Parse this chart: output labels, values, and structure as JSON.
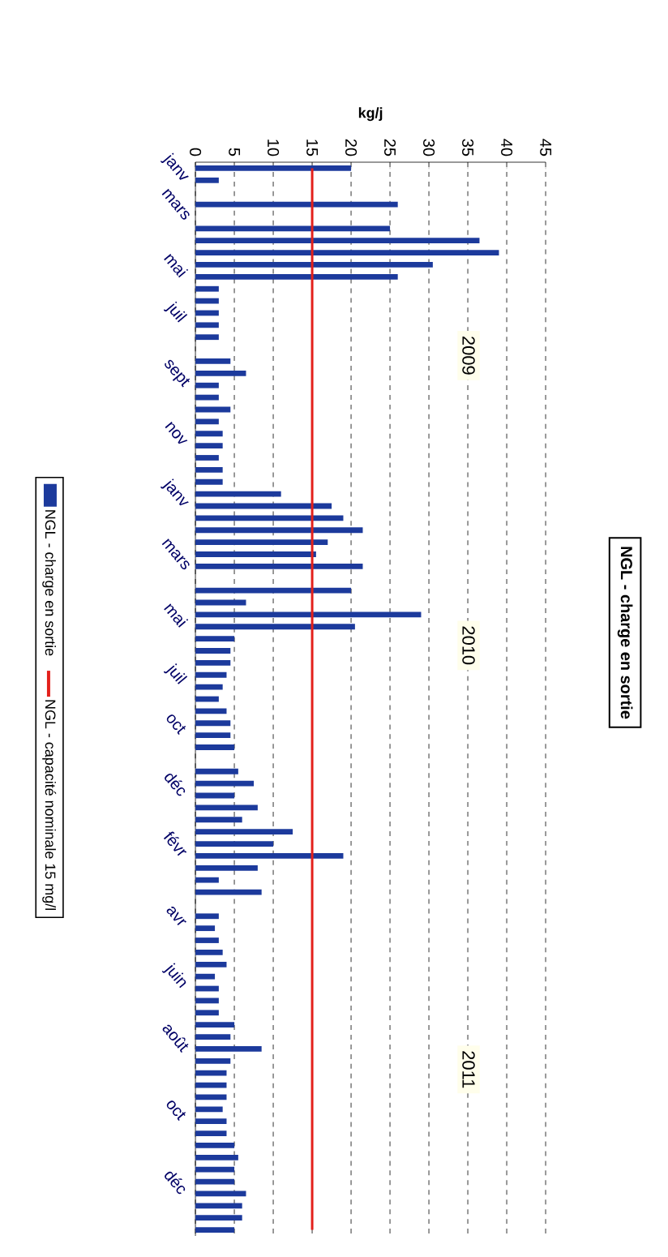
{
  "chart_data": {
    "type": "bar",
    "orientation": "horizontal",
    "title": "NGL - charge en sortie",
    "xlabel": "kg/j",
    "categories": [
      "janv",
      null,
      null,
      "mars",
      null,
      null,
      null,
      null,
      "mai",
      null,
      null,
      null,
      "juil",
      null,
      null,
      null,
      null,
      "sept",
      null,
      null,
      null,
      null,
      "nov",
      null,
      null,
      null,
      null,
      "janv",
      null,
      null,
      null,
      null,
      "mars",
      null,
      null,
      null,
      null,
      "mai",
      null,
      null,
      null,
      null,
      "juil",
      null,
      null,
      null,
      "oct",
      null,
      null,
      null,
      null,
      "déc",
      null,
      null,
      null,
      null,
      "févr",
      null,
      null,
      null,
      null,
      null,
      "avr",
      null,
      null,
      null,
      null,
      "juin",
      null,
      null,
      null,
      null,
      "août",
      null,
      null,
      null,
      null,
      null,
      "oct",
      null,
      null,
      null,
      null,
      null,
      "déc",
      null,
      null,
      null,
      null
    ],
    "series": [
      {
        "name": "NGL - charge en sortie",
        "color": "#1c3a9c",
        "values": [
          20,
          3,
          null,
          26,
          null,
          25,
          36.5,
          39,
          30.5,
          26,
          3,
          3,
          3,
          3,
          3,
          null,
          4.5,
          6.5,
          3,
          3,
          4.5,
          3,
          3.5,
          3.5,
          3,
          3.5,
          3.5,
          11,
          17.5,
          19,
          21.5,
          17,
          15.5,
          21.5,
          null,
          20,
          6.5,
          29,
          20.5,
          5,
          4.5,
          4.5,
          4,
          3.5,
          3,
          4,
          4.5,
          4.5,
          5,
          null,
          5.5,
          7.5,
          5,
          8,
          6,
          12.5,
          10,
          19,
          8,
          3,
          8.5,
          null,
          3,
          2.5,
          3,
          3.5,
          4,
          2.5,
          3,
          3,
          3,
          5,
          4.5,
          8.5,
          4.5,
          4,
          4,
          4,
          3.5,
          4,
          4,
          5,
          5.5,
          5,
          5,
          6.5,
          6,
          6,
          5
        ]
      },
      {
        "name": "NGL - capacité nominale 15 mg/l",
        "type": "line",
        "color": "#e3201b",
        "values": [
          15,
          15,
          15,
          15,
          15,
          15,
          15,
          15,
          15,
          15,
          15,
          15,
          15,
          15,
          15,
          15,
          15,
          15,
          15,
          15,
          15,
          15,
          15,
          15,
          15,
          15,
          15,
          15,
          15,
          15,
          15,
          15,
          15,
          15,
          15,
          15,
          15,
          15,
          15,
          15,
          15,
          15,
          15,
          15,
          15,
          15,
          15,
          15,
          15,
          15,
          15,
          15,
          15,
          15,
          15,
          15,
          15,
          15,
          15,
          15,
          15,
          15,
          15,
          15,
          15,
          15,
          15,
          15,
          15,
          15,
          15,
          15,
          15,
          15,
          15,
          15,
          15,
          15,
          15,
          15,
          15,
          15,
          15,
          15,
          15,
          15,
          15,
          15,
          15
        ]
      }
    ],
    "xlim": [
      0,
      45
    ],
    "xticks": [
      0,
      5,
      10,
      15,
      20,
      25,
      30,
      35,
      40,
      45
    ],
    "grid": "x",
    "legend": "left",
    "annotations": [
      "2009",
      "2010",
      "2011"
    ]
  }
}
